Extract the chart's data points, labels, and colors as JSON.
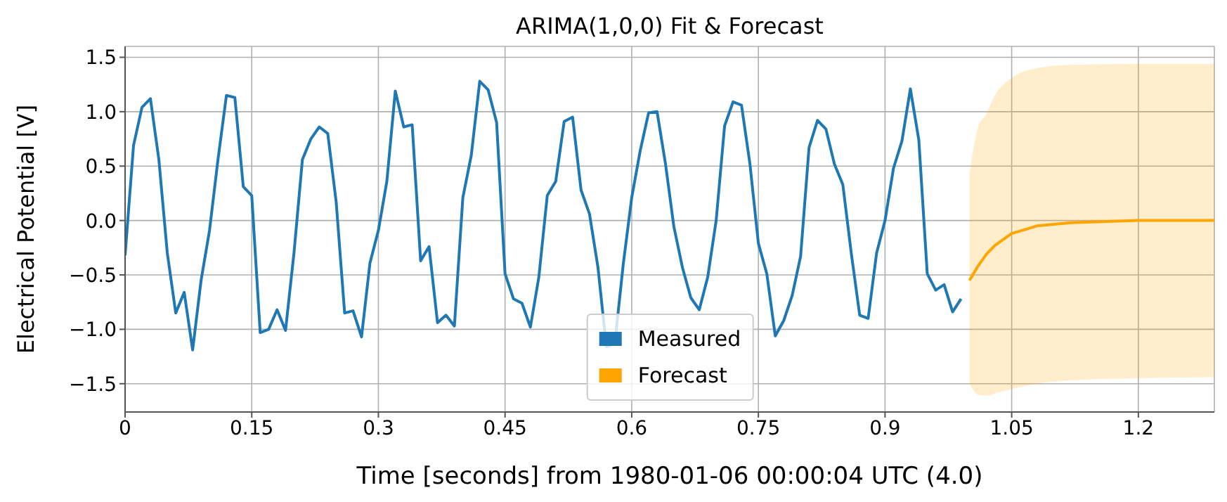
{
  "chart_data": {
    "type": "line",
    "title": "ARIMA(1,0,0) Fit & Forecast",
    "xlabel": "Time [seconds] from 1980-01-06 00:00:04 UTC (4.0)",
    "ylabel": "Electrical Potential [V]",
    "xlim": [
      0,
      1.29
    ],
    "xticks": [
      0,
      0.15,
      0.3,
      0.45,
      0.6,
      0.75,
      0.9,
      1.05,
      1.2
    ],
    "ylim": [
      -1.76,
      1.6
    ],
    "yticks": [
      {
        "value": -1.5,
        "label": "−1.5"
      },
      {
        "value": -1,
        "label": "−1.0"
      },
      {
        "value": -0.5,
        "label": "−0.5"
      },
      {
        "value": 0,
        "label": "0.0"
      },
      0.5,
      {
        "value": 1,
        "label": "1.0"
      },
      1.5
    ],
    "grid": true,
    "legend": "bottom center",
    "marker": "none",
    "line_style": "solid",
    "series": [
      {
        "name": "Measured",
        "color": "#1f77b4",
        "x": [
          0,
          0.01,
          0.02,
          0.03,
          0.04,
          0.05,
          0.06,
          0.07,
          0.08,
          0.09,
          0.1,
          0.11,
          0.12,
          0.13,
          0.14,
          0.15,
          0.16,
          0.17,
          0.18,
          0.19,
          0.2,
          0.21,
          0.22,
          0.23,
          0.24,
          0.25,
          0.26,
          0.27,
          0.28,
          0.29,
          0.3,
          0.31,
          0.32,
          0.33,
          0.34,
          0.35,
          0.36,
          0.37,
          0.38,
          0.39,
          0.4,
          0.41,
          0.42,
          0.43,
          0.44,
          0.45,
          0.46,
          0.47,
          0.48,
          0.49,
          0.5,
          0.51,
          0.52,
          0.53,
          0.54,
          0.55,
          0.56,
          0.57,
          0.58,
          0.59,
          0.6,
          0.61,
          0.62,
          0.63,
          0.64,
          0.65,
          0.66,
          0.67,
          0.68,
          0.69,
          0.7,
          0.71,
          0.72,
          0.73,
          0.74,
          0.75,
          0.76,
          0.77,
          0.78,
          0.79,
          0.8,
          0.81,
          0.82,
          0.83,
          0.84,
          0.85,
          0.86,
          0.87,
          0.88,
          0.89,
          0.9,
          0.91,
          0.92,
          0.93,
          0.94,
          0.95,
          0.96,
          0.97,
          0.98,
          0.99
        ],
        "values": [
          -0.32,
          0.69,
          1.04,
          1.12,
          0.56,
          -0.3,
          -0.85,
          -0.66,
          -1.19,
          -0.55,
          -0.09,
          0.56,
          1.15,
          1.13,
          0.31,
          0.23,
          -1.03,
          -1.0,
          -0.82,
          -1.01,
          -0.3,
          0.56,
          0.75,
          0.86,
          0.8,
          0.17,
          -0.85,
          -0.83,
          -1.07,
          -0.39,
          -0.09,
          0.36,
          1.19,
          0.86,
          0.88,
          -0.37,
          -0.24,
          -0.94,
          -0.87,
          -0.97,
          0.21,
          0.6,
          1.28,
          1.2,
          0.9,
          -0.49,
          -0.72,
          -0.76,
          -0.98,
          -0.52,
          0.23,
          0.36,
          0.91,
          0.95,
          0.28,
          0.06,
          -0.43,
          -1.16,
          -1.13,
          -0.4,
          0.21,
          0.64,
          0.99,
          1.0,
          0.52,
          -0.06,
          -0.43,
          -0.71,
          -0.82,
          -0.52,
          0.0,
          0.87,
          1.09,
          1.06,
          0.52,
          -0.21,
          -0.49,
          -1.06,
          -0.92,
          -0.69,
          -0.33,
          0.67,
          0.92,
          0.84,
          0.52,
          0.33,
          -0.3,
          -0.87,
          -0.9,
          -0.3,
          0.0,
          0.48,
          0.73,
          1.21,
          0.74,
          -0.49,
          -0.64,
          -0.59,
          -0.84,
          -0.72
        ]
      },
      {
        "name": "Forecast",
        "color": "#ffa500",
        "x": [
          1.0,
          1.01,
          1.02,
          1.03,
          1.05,
          1.08,
          1.12,
          1.2,
          1.29
        ],
        "values": [
          -0.55,
          -0.42,
          -0.31,
          -0.23,
          -0.12,
          -0.05,
          -0.02,
          0.0,
          0.0
        ],
        "lower": [
          -1.5,
          -1.6,
          -1.61,
          -1.59,
          -1.55,
          -1.5,
          -1.47,
          -1.45,
          -1.44
        ],
        "upper": [
          0.43,
          0.85,
          0.98,
          1.15,
          1.31,
          1.4,
          1.43,
          1.44,
          1.44
        ]
      }
    ]
  }
}
